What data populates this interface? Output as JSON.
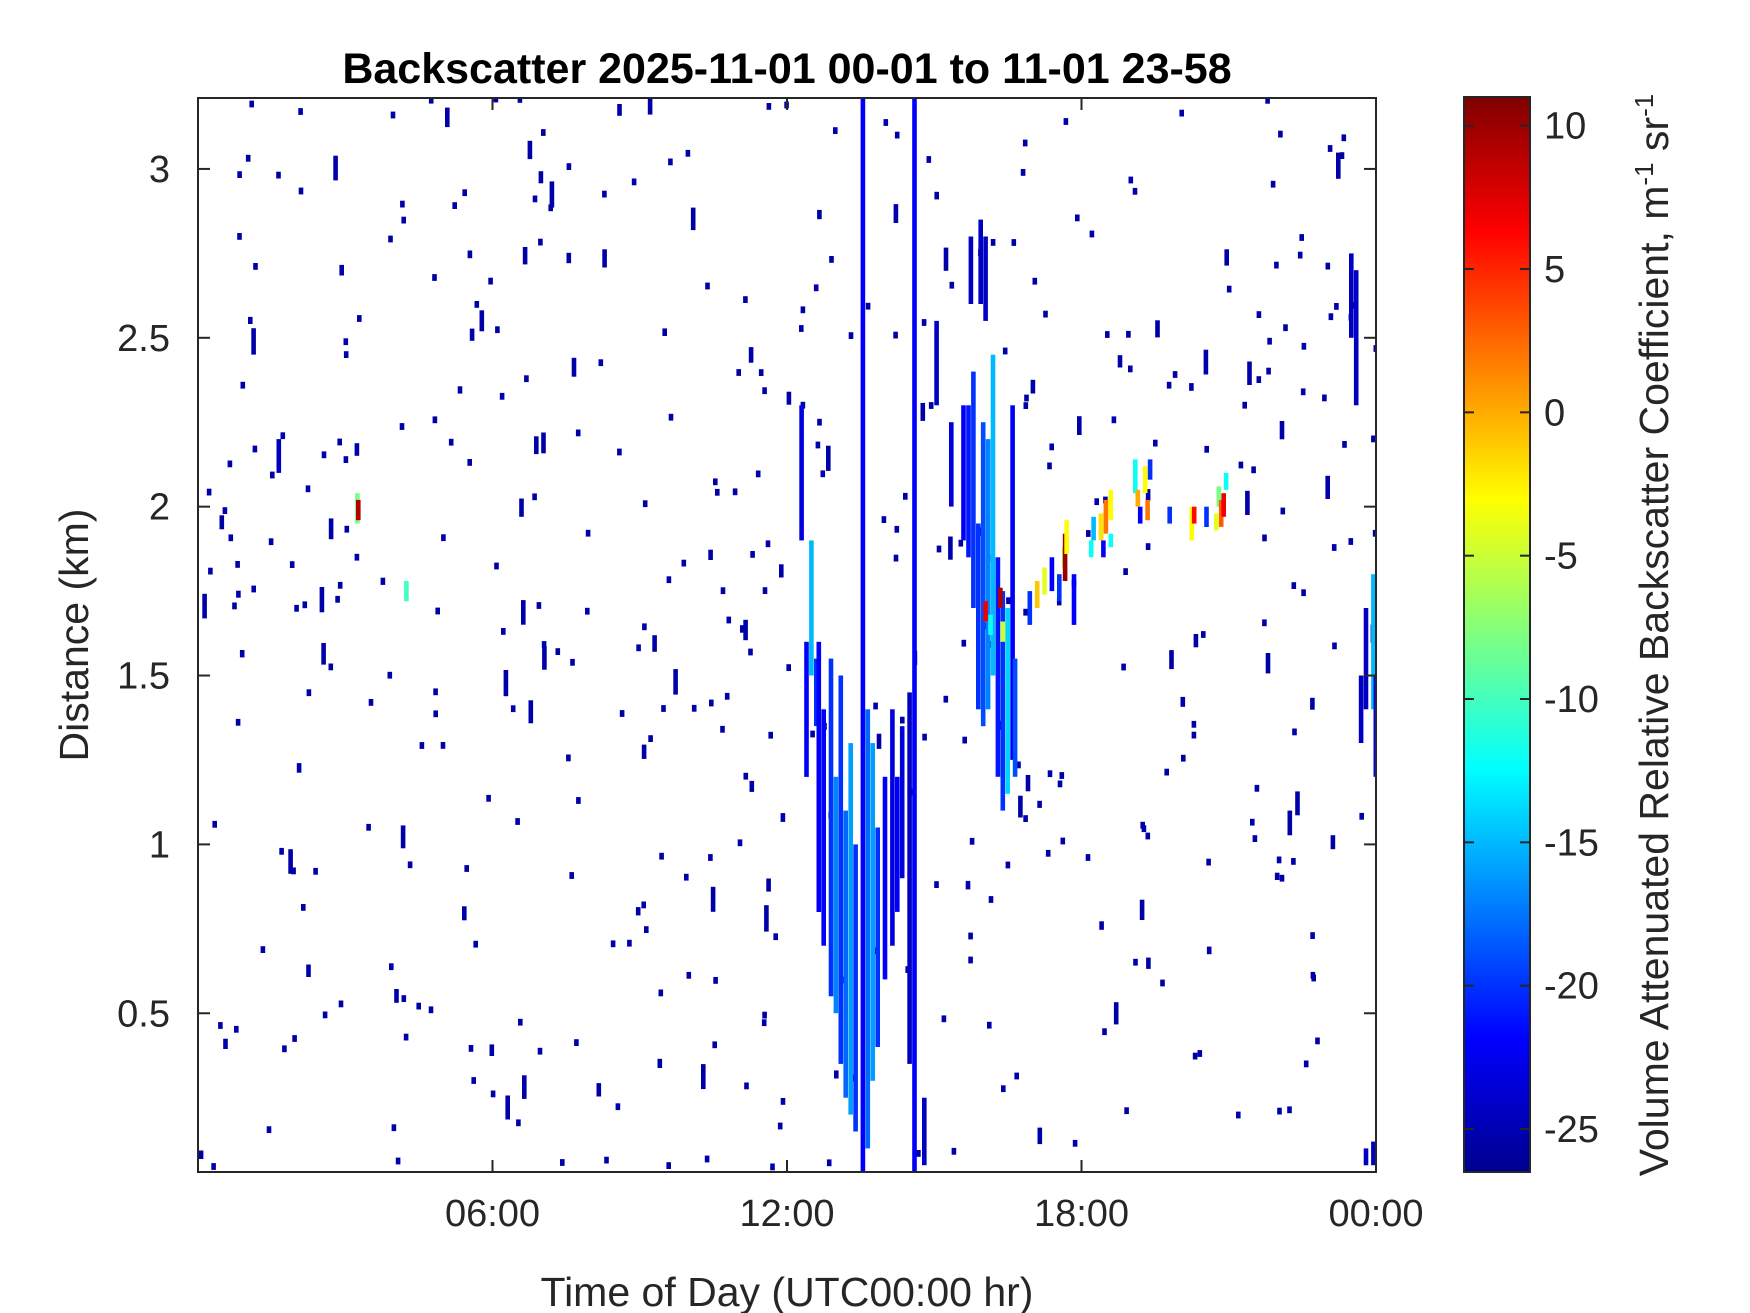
{
  "chart_data": {
    "type": "heatmap",
    "title": "Backscatter 2025-11-01 00-01 to 11-01 23-58",
    "xlabel": "Time of Day (UTC00:00 hr)",
    "ylabel": "Distance (km)",
    "colorbar_label": "Volume Attenuated Relative Backscatter Coefficient, m",
    "colorbar_label_sup1": "-1",
    "colorbar_label_mid": " sr",
    "colorbar_label_sup2": "-1",
    "xlim_hours": [
      0,
      24
    ],
    "ylim_km": [
      0.03,
      3.21
    ],
    "clim": [
      -26.5,
      11
    ],
    "colormap": "jet",
    "x_ticks": [
      {
        "hours": 6,
        "label": "06:00"
      },
      {
        "hours": 12,
        "label": "12:00"
      },
      {
        "hours": 18,
        "label": "18:00"
      },
      {
        "hours": 24,
        "label": "00:00"
      }
    ],
    "y_ticks": [
      {
        "km": 0.5,
        "label": "0.5"
      },
      {
        "km": 1,
        "label": "1"
      },
      {
        "km": 1.5,
        "label": "1.5"
      },
      {
        "km": 2,
        "label": "2"
      },
      {
        "km": 2.5,
        "label": "2.5"
      },
      {
        "km": 3,
        "label": "3"
      }
    ],
    "colorbar_ticks": [
      {
        "value": 10,
        "label": "10"
      },
      {
        "value": 5,
        "label": "5"
      },
      {
        "value": 0,
        "label": "0"
      },
      {
        "value": -5,
        "label": "-5"
      },
      {
        "value": -10,
        "label": "-10"
      },
      {
        "value": -15,
        "label": "-15"
      },
      {
        "value": -20,
        "label": "-20"
      },
      {
        "value": -25,
        "label": "-25"
      }
    ],
    "segments": [
      {
        "t": 13.5,
        "y0": 0.03,
        "y1": 3.21,
        "v": -22
      },
      {
        "t": 14.55,
        "y0": 0.03,
        "y1": 3.21,
        "v": -22
      },
      {
        "t": 12.25,
        "y0": 1.9,
        "y1": 2.3,
        "v": -23
      },
      {
        "t": 12.35,
        "y0": 1.2,
        "y1": 1.6,
        "v": -22
      },
      {
        "t": 12.45,
        "y0": 1.5,
        "y1": 1.9,
        "v": -15
      },
      {
        "t": 12.55,
        "y0": 1.35,
        "y1": 1.55,
        "v": -20
      },
      {
        "t": 12.6,
        "y0": 0.8,
        "y1": 1.6,
        "v": -22
      },
      {
        "t": 12.7,
        "y0": 0.7,
        "y1": 1.4,
        "v": -22
      },
      {
        "t": 12.85,
        "y0": 0.55,
        "y1": 1.55,
        "v": -20
      },
      {
        "t": 12.95,
        "y0": 0.5,
        "y1": 1.2,
        "v": -17
      },
      {
        "t": 13.05,
        "y0": 0.35,
        "y1": 1.5,
        "v": -20
      },
      {
        "t": 13.15,
        "y0": 0.25,
        "y1": 1.1,
        "v": -18
      },
      {
        "t": 13.25,
        "y0": 0.2,
        "y1": 1.3,
        "v": -16
      },
      {
        "t": 13.35,
        "y0": 0.15,
        "y1": 1.0,
        "v": -20
      },
      {
        "t": 13.6,
        "y0": 0.1,
        "y1": 1.4,
        "v": -18
      },
      {
        "t": 13.7,
        "y0": 0.3,
        "y1": 1.3,
        "v": -16
      },
      {
        "t": 13.8,
        "y0": 0.4,
        "y1": 1.05,
        "v": -20
      },
      {
        "t": 13.95,
        "y0": 0.6,
        "y1": 1.2,
        "v": -22
      },
      {
        "t": 14.1,
        "y0": 0.7,
        "y1": 1.4,
        "v": -23
      },
      {
        "t": 14.2,
        "y0": 0.8,
        "y1": 1.2,
        "v": -22
      },
      {
        "t": 14.3,
        "y0": 0.9,
        "y1": 1.35,
        "v": -23
      },
      {
        "t": 14.45,
        "y0": 0.35,
        "y1": 1.45,
        "v": -24
      },
      {
        "t": 14.75,
        "y0": 0.05,
        "y1": 0.25,
        "v": -24
      },
      {
        "t": 15.3,
        "y0": 2.0,
        "y1": 2.25,
        "v": -23
      },
      {
        "t": 15.55,
        "y0": 1.9,
        "y1": 2.3,
        "v": -22
      },
      {
        "t": 15.65,
        "y0": 1.85,
        "y1": 2.3,
        "v": -21
      },
      {
        "t": 15.75,
        "y0": 1.7,
        "y1": 2.4,
        "v": -20
      },
      {
        "t": 15.85,
        "y0": 1.4,
        "y1": 1.95,
        "v": -20
      },
      {
        "t": 15.95,
        "y0": 1.35,
        "y1": 2.25,
        "v": -19
      },
      {
        "t": 16.05,
        "y0": 1.4,
        "y1": 2.2,
        "v": -17
      },
      {
        "t": 16.15,
        "y0": 1.5,
        "y1": 2.45,
        "v": -15
      },
      {
        "t": 16.25,
        "y0": 1.2,
        "y1": 1.85,
        "v": -21
      },
      {
        "t": 16.35,
        "y0": 1.1,
        "y1": 1.75,
        "v": -20
      },
      {
        "t": 16.45,
        "y0": 1.15,
        "y1": 1.7,
        "v": -14
      },
      {
        "t": 16.55,
        "y0": 1.25,
        "y1": 2.3,
        "v": -22
      },
      {
        "t": 16.6,
        "y0": 1.2,
        "y1": 1.55,
        "v": -19
      },
      {
        "t": 16.0,
        "y0": 1.66,
        "y1": 1.72,
        "v": 7
      },
      {
        "t": 16.3,
        "y0": 1.7,
        "y1": 1.76,
        "v": 9
      },
      {
        "t": 16.35,
        "y0": 1.6,
        "y1": 1.66,
        "v": -5
      },
      {
        "t": 16.1,
        "y0": 1.62,
        "y1": 1.68,
        "v": -12
      },
      {
        "t": 16.9,
        "y0": 1.65,
        "y1": 1.75,
        "v": -20
      },
      {
        "t": 17.05,
        "y0": 1.7,
        "y1": 1.78,
        "v": -1
      },
      {
        "t": 17.2,
        "y0": 1.74,
        "y1": 1.82,
        "v": -4
      },
      {
        "t": 17.35,
        "y0": 1.75,
        "y1": 1.85,
        "v": -22
      },
      {
        "t": 17.5,
        "y0": 1.72,
        "y1": 1.8,
        "v": -20
      },
      {
        "t": 17.6,
        "y0": 1.82,
        "y1": 1.88,
        "v": -6
      },
      {
        "t": 17.62,
        "y0": 1.78,
        "y1": 1.92,
        "v": 10
      },
      {
        "t": 17.65,
        "y0": 1.86,
        "y1": 1.96,
        "v": -3
      },
      {
        "t": 17.8,
        "y0": 1.65,
        "y1": 1.8,
        "v": -22
      },
      {
        "t": 18.15,
        "y0": 1.85,
        "y1": 1.9,
        "v": -12
      },
      {
        "t": 18.2,
        "y0": 1.9,
        "y1": 1.97,
        "v": -15
      },
      {
        "t": 18.35,
        "y0": 1.9,
        "y1": 1.98,
        "v": -2
      },
      {
        "t": 18.45,
        "y0": 1.92,
        "y1": 2.02,
        "v": 2
      },
      {
        "t": 18.55,
        "y0": 1.96,
        "y1": 2.05,
        "v": -3
      },
      {
        "t": 18.4,
        "y0": 1.85,
        "y1": 1.9,
        "v": -22
      },
      {
        "t": 18.55,
        "y0": 1.88,
        "y1": 1.92,
        "v": -12
      },
      {
        "t": 19.05,
        "y0": 2.04,
        "y1": 2.14,
        "v": -12
      },
      {
        "t": 19.1,
        "y0": 2.0,
        "y1": 2.05,
        "v": 0
      },
      {
        "t": 19.15,
        "y0": 1.95,
        "y1": 2.0,
        "v": -22
      },
      {
        "t": 19.25,
        "y0": 2.04,
        "y1": 2.12,
        "v": -3
      },
      {
        "t": 19.3,
        "y0": 1.96,
        "y1": 2.02,
        "v": 2
      },
      {
        "t": 19.35,
        "y0": 2.08,
        "y1": 2.14,
        "v": -20
      },
      {
        "t": 19.75,
        "y0": 1.95,
        "y1": 2.0,
        "v": -20
      },
      {
        "t": 20.2,
        "y0": 1.9,
        "y1": 2.0,
        "v": -3
      },
      {
        "t": 20.25,
        "y0": 1.95,
        "y1": 2.0,
        "v": 6
      },
      {
        "t": 20.5,
        "y0": 1.94,
        "y1": 2.0,
        "v": -20
      },
      {
        "t": 20.75,
        "y0": 2.0,
        "y1": 2.06,
        "v": -8
      },
      {
        "t": 20.8,
        "y0": 1.94,
        "y1": 2.02,
        "v": 3
      },
      {
        "t": 20.85,
        "y0": 1.97,
        "y1": 2.04,
        "v": 7
      },
      {
        "t": 20.9,
        "y0": 2.05,
        "y1": 2.1,
        "v": -12
      },
      {
        "t": 20.7,
        "y0": 1.93,
        "y1": 1.98,
        "v": -4
      },
      {
        "t": 3.2,
        "y0": 1.95,
        "y1": 2.04,
        "v": -8
      },
      {
        "t": 3.22,
        "y0": 1.96,
        "y1": 2.02,
        "v": 9
      },
      {
        "t": 4.2,
        "y0": 1.72,
        "y1": 1.78,
        "v": -10
      },
      {
        "t": 23.9,
        "y0": 1.4,
        "y1": 1.8,
        "v": -15
      },
      {
        "t": 23.95,
        "y0": 1.2,
        "y1": 1.5,
        "v": -22
      },
      {
        "t": 24.0,
        "y0": 1.3,
        "y1": 1.5,
        "v": -22
      },
      {
        "t": 23.65,
        "y0": 1.3,
        "y1": 1.5,
        "v": -24
      },
      {
        "t": 23.75,
        "y0": 1.4,
        "y1": 1.7,
        "v": -24
      },
      {
        "t": 1.6,
        "y0": 2.1,
        "y1": 2.2,
        "v": -24
      },
      {
        "t": 23.45,
        "y0": 2.5,
        "y1": 2.75,
        "v": -24
      },
      {
        "t": 23.55,
        "y0": 2.3,
        "y1": 2.7,
        "v": -24
      },
      {
        "t": 15.0,
        "y0": 2.3,
        "y1": 2.55,
        "v": -24
      },
      {
        "t": 15.7,
        "y0": 2.6,
        "y1": 2.8,
        "v": -24
      },
      {
        "t": 15.9,
        "y0": 2.6,
        "y1": 2.85,
        "v": -24
      },
      {
        "t": 16.0,
        "y0": 2.55,
        "y1": 2.8,
        "v": -24
      },
      {
        "t": 23.75,
        "y0": 0.05,
        "y1": 0.1,
        "v": -24
      },
      {
        "t": 23.9,
        "y0": 0.05,
        "y1": 0.12,
        "v": -24
      }
    ],
    "noise_count": 460,
    "noise_value": -25
  }
}
